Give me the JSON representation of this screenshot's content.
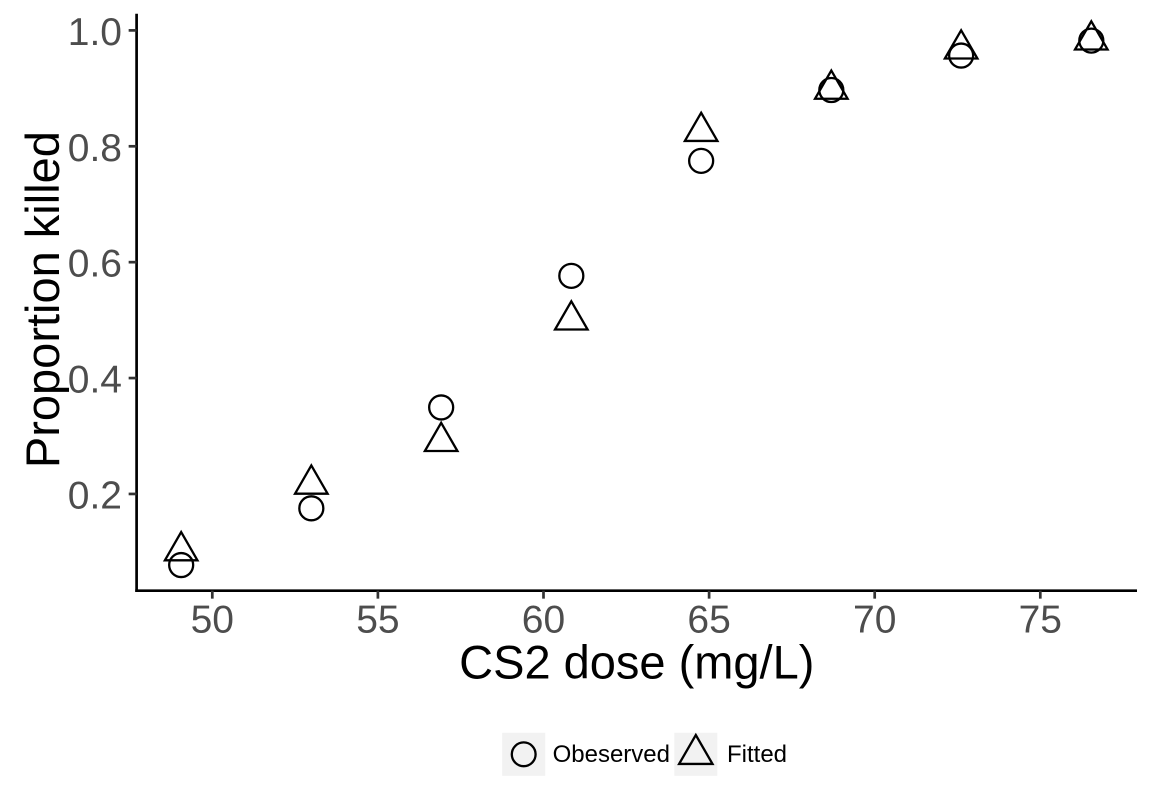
{
  "chart_data": {
    "type": "scatter",
    "title": "",
    "xlabel": "CS2 dose (mg/L)",
    "ylabel": "Proportion killed",
    "x": [
      49.06,
      52.99,
      56.91,
      60.84,
      64.76,
      68.69,
      72.61,
      76.54
    ],
    "series": [
      {
        "name": "Obeserved",
        "marker": "circle",
        "values": [
          0.0773,
          0.1752,
          0.3493,
          0.5764,
          0.7748,
          0.8971,
          0.9566,
          0.9824
        ]
      },
      {
        "name": "Fitted",
        "marker": "triangle",
        "values": [
          0.1017,
          0.2167,
          0.2903,
          0.5,
          0.8254,
          0.8983,
          0.9677,
          0.9833
        ]
      }
    ],
    "x_ticks": [
      50,
      55,
      60,
      65,
      70,
      75
    ],
    "x_tick_labels": [
      "50",
      "55",
      "60",
      "65",
      "70",
      "75"
    ],
    "y_ticks": [
      0.2,
      0.4,
      0.6,
      0.8,
      1.0
    ],
    "y_tick_labels": [
      "0.2",
      "0.4",
      "0.6",
      "0.8",
      "1.0"
    ],
    "x_domain": [
      47.7144,
      77.9197
    ],
    "y_domain": [
      0.03303,
      1.02863
    ],
    "grid": false,
    "legend_position": "bottom"
  },
  "colors": {
    "background": "#ffffff",
    "axis_line": "#000000",
    "tick_mark": "#333333",
    "tick_label": "#4d4d4d",
    "axis_title": "#000000",
    "marker_stroke": "#000000",
    "legend_key_bg": "#f2f2f2",
    "legend_text": "#000000"
  }
}
